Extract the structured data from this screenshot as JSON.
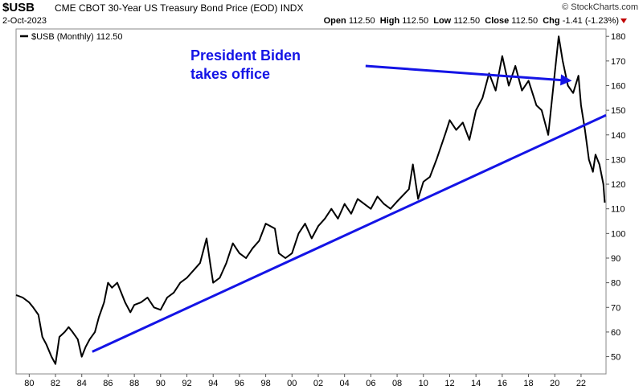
{
  "header": {
    "symbol": "$USB",
    "description": "CME CBOT 30-Year US Treasury Bond Price (EOD)",
    "exchange": "INDX",
    "date": "2-Oct-2023",
    "brand": "© StockCharts.com",
    "open_label": "Open",
    "open": "112.50",
    "high_label": "High",
    "high": "112.50",
    "low_label": "Low",
    "low": "112.50",
    "close_label": "Close",
    "close": "112.50",
    "chg_label": "Chg",
    "chg": "-1.41 (-1.23%)"
  },
  "chart_data": {
    "type": "line",
    "legend": "$USB (Monthly) 112.50",
    "annotation": "President Biden takes office",
    "x_tick_labels": [
      "80",
      "82",
      "84",
      "86",
      "88",
      "90",
      "92",
      "94",
      "96",
      "98",
      "00",
      "02",
      "04",
      "06",
      "08",
      "10",
      "12",
      "14",
      "16",
      "18",
      "20",
      "22"
    ],
    "x_ticks": [
      1980,
      1982,
      1984,
      1986,
      1988,
      1990,
      1992,
      1994,
      1996,
      1998,
      2000,
      2002,
      2004,
      2006,
      2008,
      2010,
      2012,
      2014,
      2016,
      2018,
      2020,
      2022
    ],
    "xlim": [
      1979.0,
      2023.9
    ],
    "y_ticks": [
      50,
      60,
      70,
      80,
      90,
      100,
      110,
      120,
      130,
      140,
      150,
      160,
      170,
      180
    ],
    "ylim": [
      43,
      183
    ],
    "line_color": "#000000",
    "trendline_color": "#1414e6",
    "trendline": {
      "x": [
        1984.8,
        2023.9
      ],
      "y": [
        52,
        148
      ]
    },
    "annotation_arrow": {
      "from": [
        2005.6,
        168
      ],
      "to": [
        2021.3,
        162
      ]
    },
    "series": [
      {
        "x": [
          1979.0,
          1979.5,
          1980.0,
          1980.3,
          1980.7,
          1981.0,
          1981.3,
          1981.7,
          1982.0,
          1982.3,
          1982.7,
          1983.0,
          1983.3,
          1983.7,
          1984.0,
          1984.3,
          1984.6,
          1985.0,
          1985.3,
          1985.7,
          1986.0,
          1986.3,
          1986.7,
          1987.0,
          1987.3,
          1987.7,
          1988.0,
          1988.5,
          1989.0,
          1989.5,
          1990.0,
          1990.5,
          1991.0,
          1991.5,
          1992.0,
          1992.5,
          1993.0,
          1993.5,
          1993.8,
          1994.0,
          1994.5,
          1995.0,
          1995.5,
          1996.0,
          1996.5,
          1997.0,
          1997.5,
          1998.0,
          1998.7,
          1999.0,
          1999.5,
          2000.0,
          2000.5,
          2001.0,
          2001.5,
          2002.0,
          2002.5,
          2003.0,
          2003.5,
          2004.0,
          2004.5,
          2005.0,
          2005.5,
          2006.0,
          2006.5,
          2007.0,
          2007.5,
          2008.0,
          2008.9,
          2009.2,
          2009.6,
          2010.0,
          2010.5,
          2011.0,
          2011.7,
          2012.0,
          2012.5,
          2013.0,
          2013.5,
          2014.0,
          2014.5,
          2015.0,
          2015.5,
          2016.0,
          2016.5,
          2017.0,
          2017.5,
          2018.0,
          2018.6,
          2019.0,
          2019.5,
          2020.0,
          2020.3,
          2020.6,
          2021.0,
          2021.4,
          2021.8,
          2022.0,
          2022.3,
          2022.6,
          2022.9,
          2023.1,
          2023.4,
          2023.7,
          2023.8
        ],
        "y": [
          75,
          74,
          72,
          70,
          67,
          58,
          55,
          50,
          47,
          58,
          60,
          62,
          60,
          57,
          50,
          54,
          57,
          60,
          66,
          72,
          80,
          78,
          80,
          76,
          72,
          68,
          71,
          72,
          74,
          70,
          69,
          74,
          76,
          80,
          82,
          85,
          88,
          98,
          87,
          80,
          82,
          88,
          96,
          92,
          90,
          94,
          97,
          104,
          102,
          92,
          90,
          92,
          100,
          104,
          98,
          103,
          106,
          110,
          106,
          112,
          108,
          114,
          112,
          110,
          115,
          112,
          110,
          113,
          118,
          128,
          114,
          121,
          123,
          130,
          141,
          146,
          142,
          145,
          138,
          150,
          155,
          165,
          158,
          172,
          160,
          168,
          158,
          162,
          152,
          150,
          140,
          165,
          180,
          170,
          160,
          157,
          164,
          152,
          142,
          130,
          125,
          132,
          128,
          120,
          112.5
        ]
      }
    ]
  }
}
